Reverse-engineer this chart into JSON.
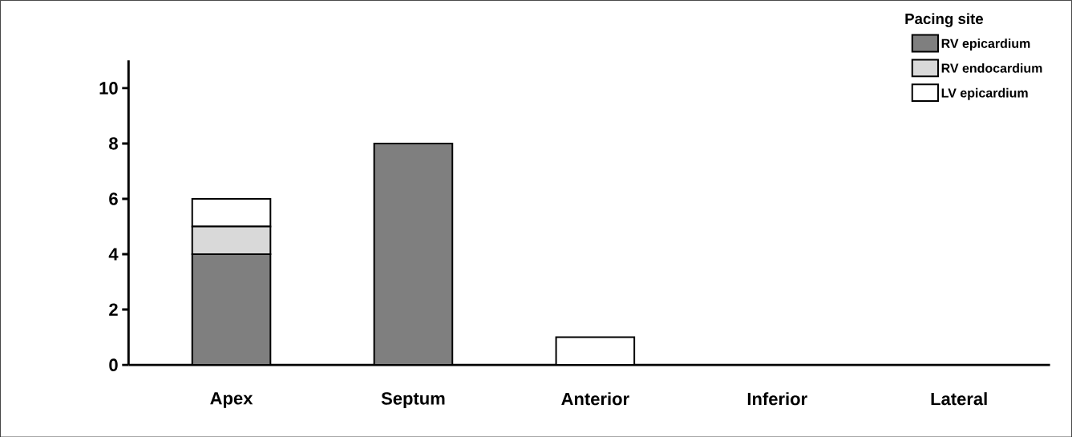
{
  "chart_data": {
    "type": "bar",
    "stacked": true,
    "legend_title": "Pacing site",
    "legend": "top right",
    "categories": [
      "Apex",
      "Septum",
      "Anterior",
      "Inferior",
      "Lateral"
    ],
    "series": [
      {
        "name": "RV epicardium",
        "color": "#7f7f7f",
        "values": [
          4,
          8,
          0,
          0,
          0
        ]
      },
      {
        "name": "RV endocardium",
        "color": "#d9d9d9",
        "values": [
          1,
          0,
          0,
          0,
          0
        ]
      },
      {
        "name": "LV epicardium",
        "color": "#ffffff",
        "values": [
          1,
          0,
          1,
          0,
          0
        ]
      }
    ],
    "ylim": [
      0,
      11
    ],
    "yticks": [
      0,
      2,
      4,
      6,
      8,
      10
    ],
    "grid": false
  }
}
